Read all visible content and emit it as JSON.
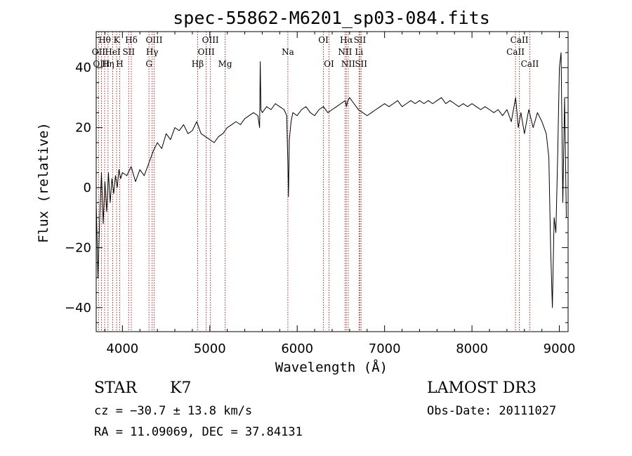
{
  "chart_data": {
    "type": "line",
    "title": "spec-55862-M6201_sp03-084.fits",
    "xlabel": "Wavelength (Å)",
    "ylabel": "Flux (relative)",
    "xlim": [
      3700,
      9100
    ],
    "ylim": [
      -48,
      52
    ],
    "x_ticks": [
      4000,
      5000,
      6000,
      7000,
      8000,
      9000
    ],
    "y_ticks": [
      -40,
      -20,
      0,
      20,
      40
    ],
    "grid": false,
    "line_color": "#000000",
    "marker_color": "#a52a2a",
    "series": [
      {
        "x": [
          3700,
          3720,
          3740,
          3760,
          3780,
          3800,
          3820,
          3840,
          3860,
          3880,
          3900,
          3920,
          3940,
          3960,
          3980,
          4000,
          4050,
          4100,
          4150,
          4200,
          4250,
          4300,
          4350,
          4400,
          4450,
          4500,
          4550,
          4600,
          4650,
          4700,
          4750,
          4800,
          4850,
          4900,
          4950,
          5000,
          5050,
          5100,
          5150,
          5200,
          5250,
          5300,
          5350,
          5400,
          5450,
          5500,
          5550,
          5570,
          5577,
          5585,
          5600,
          5650,
          5700,
          5750,
          5800,
          5850,
          5880,
          5895,
          5900,
          5910,
          5930,
          5950,
          6000,
          6050,
          6100,
          6150,
          6200,
          6250,
          6300,
          6350,
          6400,
          6450,
          6500,
          6550,
          6563,
          6580,
          6600,
          6650,
          6700,
          6750,
          6800,
          6850,
          6900,
          6950,
          7000,
          7050,
          7100,
          7150,
          7200,
          7250,
          7300,
          7350,
          7400,
          7450,
          7500,
          7550,
          7600,
          7650,
          7700,
          7750,
          7800,
          7850,
          7900,
          7950,
          8000,
          8050,
          8100,
          8150,
          8200,
          8250,
          8300,
          8350,
          8400,
          8450,
          8500,
          8530,
          8560,
          8600,
          8650,
          8700,
          8750,
          8800,
          8850,
          8880,
          8900,
          8920,
          8940,
          8960,
          8980,
          9000,
          9020,
          9040,
          9060,
          9080
        ],
        "y": [
          -5,
          -30,
          -10,
          5,
          -12,
          2,
          -8,
          5,
          -5,
          3,
          -2,
          4,
          0,
          6,
          3,
          5,
          4,
          7,
          2,
          6,
          4,
          8,
          12,
          15,
          13,
          18,
          16,
          20,
          19,
          21,
          18,
          19,
          22,
          18,
          17,
          16,
          15,
          17,
          18,
          20,
          21,
          22,
          21,
          23,
          24,
          25,
          24,
          20,
          42,
          26,
          25,
          27,
          26,
          28,
          27,
          26,
          24,
          5,
          -3,
          16,
          22,
          25,
          24,
          26,
          27,
          25,
          24,
          26,
          27,
          25,
          26,
          27,
          28,
          29,
          27,
          29,
          30,
          28,
          26,
          25,
          24,
          25,
          26,
          27,
          28,
          27,
          28,
          29,
          27,
          28,
          29,
          28,
          29,
          28,
          29,
          28,
          29,
          30,
          28,
          29,
          28,
          27,
          28,
          27,
          28,
          27,
          26,
          27,
          26,
          25,
          26,
          24,
          26,
          22,
          30,
          20,
          25,
          18,
          26,
          20,
          25,
          22,
          18,
          10,
          -20,
          -40,
          -10,
          -15,
          10,
          40,
          45,
          -5,
          30,
          -10
        ]
      }
    ],
    "line_markers": [
      {
        "label": "Hθ",
        "x": 3797,
        "row": 0
      },
      {
        "label": "OII",
        "x": 3727,
        "row": 1
      },
      {
        "label": "OIII",
        "x": 3760,
        "row": 2
      },
      {
        "label": "Hη",
        "x": 3835,
        "row": 2
      },
      {
        "label": "HeI",
        "x": 3889,
        "row": 1
      },
      {
        "label": "K",
        "x": 3934,
        "row": 0
      },
      {
        "label": "H",
        "x": 3969,
        "row": 2
      },
      {
        "label": "SII",
        "x": 4072,
        "row": 1
      },
      {
        "label": "Hδ",
        "x": 4102,
        "row": 0
      },
      {
        "label": "OIII",
        "x": 4363,
        "row": 0
      },
      {
        "label": "Hγ",
        "x": 4340,
        "row": 1
      },
      {
        "label": "G",
        "x": 4304,
        "row": 2
      },
      {
        "label": "Hβ",
        "x": 4861,
        "row": 2
      },
      {
        "label": "OIII",
        "x": 4959,
        "row": 1
      },
      {
        "label": "OIII",
        "x": 5007,
        "row": 0
      },
      {
        "label": "Mg",
        "x": 5175,
        "row": 2
      },
      {
        "label": "Na",
        "x": 5893,
        "row": 1
      },
      {
        "label": "OI",
        "x": 6300,
        "row": 0
      },
      {
        "label": "OI",
        "x": 6364,
        "row": 2
      },
      {
        "label": "Hα",
        "x": 6563,
        "row": 0
      },
      {
        "label": "NII",
        "x": 6548,
        "row": 1
      },
      {
        "label": "NII",
        "x": 6584,
        "row": 2
      },
      {
        "label": "SII",
        "x": 6717,
        "row": 0
      },
      {
        "label": "Li",
        "x": 6708,
        "row": 1
      },
      {
        "label": "SII",
        "x": 6731,
        "row": 2
      },
      {
        "label": "CaII",
        "x": 8542,
        "row": 0
      },
      {
        "label": "CaII",
        "x": 8498,
        "row": 1
      },
      {
        "label": "CaII",
        "x": 8662,
        "row": 2
      }
    ]
  },
  "info": {
    "class": "STAR",
    "subclass": "K7",
    "survey": "LAMOST DR3",
    "redshift": "cz = −30.7 ± 13.8 km/s",
    "obs_date": "Obs-Date: 20111027",
    "coords": "RA =  11.09069, DEC =  37.84131"
  }
}
